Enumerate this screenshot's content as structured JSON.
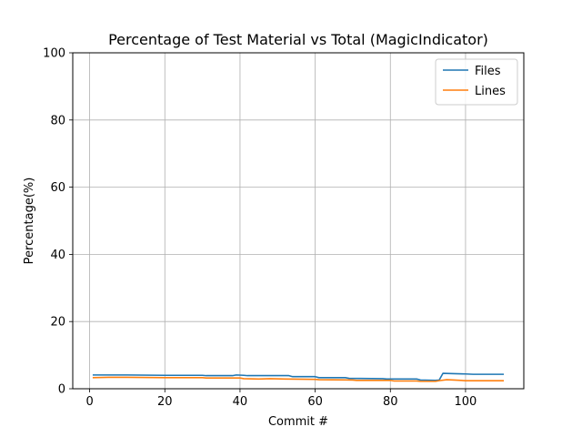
{
  "chart_data": {
    "type": "line",
    "title": "Percentage of Test Material vs Total (MagicIndicator)",
    "xlabel": "Commit #",
    "ylabel": "Percentage(%)",
    "xlim": [
      -4.5,
      115.5
    ],
    "ylim": [
      0,
      100
    ],
    "xticks": [
      0,
      20,
      40,
      60,
      80,
      100
    ],
    "yticks": [
      0,
      20,
      40,
      60,
      80,
      100
    ],
    "grid": true,
    "legend_position": "top-right",
    "series": [
      {
        "name": "Files",
        "color": "#1f77b4",
        "x": [
          1,
          10,
          20,
          30,
          31,
          35,
          38,
          39,
          41,
          42,
          50,
          53,
          54,
          60,
          61,
          68,
          69,
          78,
          79,
          87,
          88,
          92,
          93,
          94,
          97,
          100,
          102,
          110
        ],
        "y": [
          4.1,
          4.1,
          4.0,
          4.0,
          3.9,
          3.9,
          3.9,
          4.1,
          4.0,
          3.9,
          3.9,
          3.9,
          3.6,
          3.6,
          3.3,
          3.3,
          3.1,
          3.0,
          2.9,
          2.9,
          2.6,
          2.5,
          2.6,
          4.6,
          4.5,
          4.4,
          4.3,
          4.3
        ]
      },
      {
        "name": "Lines",
        "color": "#ff7f0e",
        "x": [
          1,
          5,
          10,
          20,
          25,
          30,
          31,
          40,
          41,
          45,
          48,
          52,
          60,
          61,
          70,
          71,
          80,
          81,
          87,
          88,
          92,
          93,
          95,
          97,
          100,
          105,
          110
        ],
        "y": [
          3.3,
          3.4,
          3.4,
          3.3,
          3.3,
          3.3,
          3.2,
          3.2,
          3.0,
          2.9,
          3.0,
          2.9,
          2.8,
          2.7,
          2.6,
          2.5,
          2.5,
          2.3,
          2.3,
          2.2,
          2.2,
          2.4,
          2.7,
          2.6,
          2.4,
          2.4,
          2.4
        ]
      }
    ]
  }
}
